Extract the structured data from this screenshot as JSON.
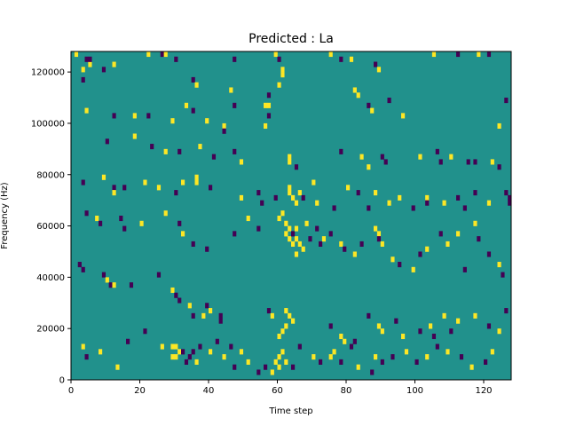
{
  "chart_data": {
    "type": "heatmap",
    "title": "Predicted : La",
    "xlabel": "Time step",
    "ylabel": "Frequency (Hz)",
    "xlim": [
      0,
      128
    ],
    "ylim": [
      0,
      128000
    ],
    "x_ticks": [
      0,
      20,
      40,
      60,
      80,
      100,
      120
    ],
    "y_ticks": [
      0,
      20000,
      40000,
      60000,
      80000,
      100000,
      120000
    ],
    "x_tick_labels": [
      "0",
      "20",
      "40",
      "60",
      "80",
      "100",
      "120"
    ],
    "y_tick_labels": [
      "0",
      "20000",
      "40000",
      "60000",
      "80000",
      "100000",
      "120000"
    ],
    "colormap": "viridis",
    "colors": {
      "background": "#21918c",
      "low": "#440154",
      "high": "#fde725"
    },
    "grid": false,
    "rows": 64,
    "cols": 128,
    "cells_note_levels": "v = 1 high (yellow), -1 low (purple), baseline mid (teal)",
    "cells": [
      [
        1,
        63,
        1
      ],
      [
        4,
        62,
        -1
      ],
      [
        5,
        61,
        1
      ],
      [
        3,
        60,
        1
      ],
      [
        3,
        58,
        -1
      ],
      [
        5,
        62,
        -1
      ],
      [
        12,
        61,
        1
      ],
      [
        9,
        60,
        -1
      ],
      [
        22,
        63,
        1
      ],
      [
        26,
        63,
        -1
      ],
      [
        27,
        63,
        1
      ],
      [
        30,
        62,
        -1
      ],
      [
        35,
        58,
        -1
      ],
      [
        36,
        57,
        1
      ],
      [
        47,
        62,
        -1
      ],
      [
        46,
        56,
        1
      ],
      [
        47,
        53,
        -1
      ],
      [
        59,
        63,
        1
      ],
      [
        60,
        62,
        -1
      ],
      [
        61,
        60,
        1
      ],
      [
        61,
        59,
        1
      ],
      [
        60,
        57,
        1
      ],
      [
        57,
        55,
        -1
      ],
      [
        56,
        53,
        1
      ],
      [
        57,
        53,
        1
      ],
      [
        75,
        63,
        1
      ],
      [
        78,
        62,
        -1
      ],
      [
        81,
        62,
        1
      ],
      [
        88,
        61,
        -1
      ],
      [
        89,
        60,
        1
      ],
      [
        105,
        63,
        1
      ],
      [
        112,
        63,
        -1
      ],
      [
        118,
        63,
        1
      ],
      [
        121,
        63,
        -1
      ],
      [
        4,
        52,
        1
      ],
      [
        12,
        51,
        -1
      ],
      [
        18,
        51,
        1
      ],
      [
        22,
        51,
        -1
      ],
      [
        29,
        50,
        1
      ],
      [
        33,
        53,
        1
      ],
      [
        35,
        52,
        -1
      ],
      [
        39,
        50,
        1
      ],
      [
        44,
        49,
        1
      ],
      [
        44,
        48,
        -1
      ],
      [
        57,
        51,
        -1
      ],
      [
        56,
        49,
        1
      ],
      [
        82,
        56,
        1
      ],
      [
        83,
        55,
        1
      ],
      [
        86,
        53,
        -1
      ],
      [
        87,
        52,
        1
      ],
      [
        92,
        54,
        -1
      ],
      [
        96,
        51,
        1
      ],
      [
        126,
        54,
        -1
      ],
      [
        124,
        49,
        1
      ],
      [
        10,
        46,
        -1
      ],
      [
        18,
        47,
        1
      ],
      [
        23,
        45,
        -1
      ],
      [
        27,
        44,
        1
      ],
      [
        31,
        44,
        -1
      ],
      [
        37,
        45,
        1
      ],
      [
        41,
        43,
        -1
      ],
      [
        47,
        44,
        -1
      ],
      [
        49,
        42,
        1
      ],
      [
        63,
        43,
        1
      ],
      [
        63,
        42,
        1
      ],
      [
        65,
        41,
        -1
      ],
      [
        78,
        44,
        -1
      ],
      [
        84,
        43,
        1
      ],
      [
        86,
        41,
        1
      ],
      [
        90,
        43,
        -1
      ],
      [
        91,
        42,
        -1
      ],
      [
        101,
        43,
        1
      ],
      [
        106,
        44,
        -1
      ],
      [
        107,
        42,
        -1
      ],
      [
        110,
        43,
        1
      ],
      [
        115,
        42,
        -1
      ],
      [
        117,
        42,
        -1
      ],
      [
        122,
        42,
        1
      ],
      [
        124,
        41,
        -1
      ],
      [
        3,
        38,
        -1
      ],
      [
        9,
        39,
        1
      ],
      [
        12,
        37,
        -1
      ],
      [
        12,
        36,
        1
      ],
      [
        15,
        37,
        -1
      ],
      [
        21,
        38,
        1
      ],
      [
        25,
        37,
        1
      ],
      [
        30,
        36,
        -1
      ],
      [
        32,
        38,
        1
      ],
      [
        36,
        39,
        1
      ],
      [
        36,
        38,
        1
      ],
      [
        40,
        37,
        -1
      ],
      [
        49,
        35,
        1
      ],
      [
        54,
        36,
        -1
      ],
      [
        55,
        34,
        -1
      ],
      [
        59,
        35,
        -1
      ],
      [
        63,
        37,
        1
      ],
      [
        63,
        36,
        1
      ],
      [
        64,
        35,
        1
      ],
      [
        65,
        34,
        1
      ],
      [
        66,
        36,
        1
      ],
      [
        67,
        35,
        -1
      ],
      [
        70,
        38,
        1
      ],
      [
        71,
        34,
        1
      ],
      [
        76,
        33,
        -1
      ],
      [
        80,
        37,
        1
      ],
      [
        83,
        36,
        -1
      ],
      [
        86,
        33,
        -1
      ],
      [
        88,
        36,
        1
      ],
      [
        92,
        34,
        1
      ],
      [
        95,
        35,
        1
      ],
      [
        99,
        33,
        -1
      ],
      [
        103,
        35,
        1
      ],
      [
        103,
        34,
        -1
      ],
      [
        108,
        34,
        1
      ],
      [
        112,
        35,
        -1
      ],
      [
        114,
        33,
        -1
      ],
      [
        117,
        36,
        -1
      ],
      [
        121,
        34,
        1
      ],
      [
        126,
        36,
        -1
      ],
      [
        127,
        35,
        -1
      ],
      [
        127,
        34,
        -1
      ],
      [
        4,
        32,
        -1
      ],
      [
        7,
        31,
        1
      ],
      [
        8,
        30,
        -1
      ],
      [
        14,
        31,
        -1
      ],
      [
        15,
        29,
        -1
      ],
      [
        20,
        30,
        1
      ],
      [
        27,
        32,
        1
      ],
      [
        31,
        30,
        -1
      ],
      [
        32,
        28,
        1
      ],
      [
        35,
        26,
        -1
      ],
      [
        39,
        25,
        -1
      ],
      [
        47,
        28,
        -1
      ],
      [
        51,
        31,
        1
      ],
      [
        54,
        29,
        -1
      ],
      [
        60,
        31,
        1
      ],
      [
        61,
        32,
        1
      ],
      [
        62,
        30,
        1
      ],
      [
        63,
        29,
        1
      ],
      [
        62,
        28,
        1
      ],
      [
        63,
        27,
        1
      ],
      [
        64,
        26,
        1
      ],
      [
        65,
        27,
        1
      ],
      [
        64,
        28,
        -1
      ],
      [
        65,
        29,
        1
      ],
      [
        66,
        26,
        1
      ],
      [
        67,
        25,
        1
      ],
      [
        65,
        24,
        1
      ],
      [
        68,
        30,
        1
      ],
      [
        69,
        27,
        -1
      ],
      [
        71,
        29,
        -1
      ],
      [
        72,
        26,
        -1
      ],
      [
        73,
        27,
        1
      ],
      [
        75,
        28,
        -1
      ],
      [
        78,
        26,
        1
      ],
      [
        79,
        25,
        -1
      ],
      [
        82,
        24,
        1
      ],
      [
        84,
        26,
        -1
      ],
      [
        88,
        29,
        1
      ],
      [
        89,
        28,
        1
      ],
      [
        89,
        27,
        -1
      ],
      [
        90,
        26,
        1
      ],
      [
        93,
        23,
        1
      ],
      [
        95,
        22,
        -1
      ],
      [
        99,
        21,
        1
      ],
      [
        101,
        24,
        -1
      ],
      [
        103,
        25,
        1
      ],
      [
        107,
        28,
        -1
      ],
      [
        109,
        26,
        1
      ],
      [
        112,
        28,
        1
      ],
      [
        114,
        21,
        -1
      ],
      [
        117,
        30,
        1
      ],
      [
        118,
        27,
        -1
      ],
      [
        121,
        24,
        -1
      ],
      [
        124,
        22,
        1
      ],
      [
        125,
        20,
        -1
      ],
      [
        2,
        22,
        -1
      ],
      [
        3,
        21,
        -1
      ],
      [
        9,
        20,
        -1
      ],
      [
        10,
        19,
        1
      ],
      [
        11,
        18,
        -1
      ],
      [
        12,
        18,
        1
      ],
      [
        17,
        18,
        -1
      ],
      [
        25,
        20,
        -1
      ],
      [
        29,
        17,
        1
      ],
      [
        30,
        16,
        -1
      ],
      [
        31,
        15,
        -1
      ],
      [
        34,
        14,
        1
      ],
      [
        35,
        12,
        -1
      ],
      [
        38,
        12,
        1
      ],
      [
        39,
        14,
        -1
      ],
      [
        40,
        13,
        1
      ],
      [
        43,
        11,
        -1
      ],
      [
        43,
        12,
        -1
      ],
      [
        57,
        13,
        -1
      ],
      [
        58,
        12,
        1
      ],
      [
        62,
        13,
        1
      ],
      [
        63,
        12,
        1
      ],
      [
        64,
        11,
        1
      ],
      [
        62,
        10,
        1
      ],
      [
        61,
        9,
        1
      ],
      [
        60,
        8,
        1
      ],
      [
        75,
        10,
        -1
      ],
      [
        78,
        8,
        1
      ],
      [
        79,
        7,
        1
      ],
      [
        82,
        7,
        -1
      ],
      [
        86,
        12,
        -1
      ],
      [
        89,
        10,
        1
      ],
      [
        90,
        9,
        1
      ],
      [
        94,
        11,
        -1
      ],
      [
        96,
        8,
        1
      ],
      [
        101,
        9,
        -1
      ],
      [
        104,
        10,
        1
      ],
      [
        105,
        8,
        -1
      ],
      [
        108,
        12,
        1
      ],
      [
        110,
        9,
        -1
      ],
      [
        112,
        11,
        1
      ],
      [
        117,
        12,
        1
      ],
      [
        121,
        10,
        -1
      ],
      [
        124,
        9,
        1
      ],
      [
        126,
        13,
        -1
      ],
      [
        3,
        6,
        1
      ],
      [
        4,
        4,
        -1
      ],
      [
        8,
        5,
        1
      ],
      [
        13,
        2,
        1
      ],
      [
        16,
        7,
        -1
      ],
      [
        21,
        9,
        -1
      ],
      [
        26,
        6,
        1
      ],
      [
        29,
        4,
        1
      ],
      [
        30,
        4,
        1
      ],
      [
        31,
        5,
        1
      ],
      [
        29,
        6,
        1
      ],
      [
        30,
        6,
        1
      ],
      [
        32,
        5,
        -1
      ],
      [
        33,
        3,
        -1
      ],
      [
        34,
        4,
        -1
      ],
      [
        35,
        5,
        -1
      ],
      [
        36,
        3,
        1
      ],
      [
        37,
        6,
        -1
      ],
      [
        40,
        5,
        1
      ],
      [
        42,
        7,
        -1
      ],
      [
        44,
        4,
        1
      ],
      [
        46,
        6,
        -1
      ],
      [
        47,
        2,
        -1
      ],
      [
        49,
        5,
        1
      ],
      [
        51,
        3,
        1
      ],
      [
        54,
        1,
        -1
      ],
      [
        56,
        2,
        -1
      ],
      [
        58,
        1,
        1
      ],
      [
        59,
        3,
        1
      ],
      [
        60,
        4,
        1
      ],
      [
        61,
        5,
        1
      ],
      [
        60,
        2,
        1
      ],
      [
        62,
        3,
        1
      ],
      [
        64,
        2,
        -1
      ],
      [
        66,
        6,
        -1
      ],
      [
        70,
        4,
        1
      ],
      [
        72,
        3,
        -1
      ],
      [
        75,
        4,
        1
      ],
      [
        76,
        5,
        1
      ],
      [
        78,
        3,
        -1
      ],
      [
        81,
        6,
        -1
      ],
      [
        83,
        2,
        1
      ],
      [
        87,
        1,
        -1
      ],
      [
        88,
        4,
        1
      ],
      [
        90,
        3,
        -1
      ],
      [
        93,
        4,
        -1
      ],
      [
        97,
        5,
        1
      ],
      [
        100,
        3,
        -1
      ],
      [
        103,
        4,
        1
      ],
      [
        106,
        6,
        -1
      ],
      [
        109,
        5,
        1
      ],
      [
        113,
        4,
        -1
      ],
      [
        116,
        2,
        1
      ],
      [
        120,
        3,
        -1
      ],
      [
        122,
        5,
        1
      ]
    ]
  }
}
